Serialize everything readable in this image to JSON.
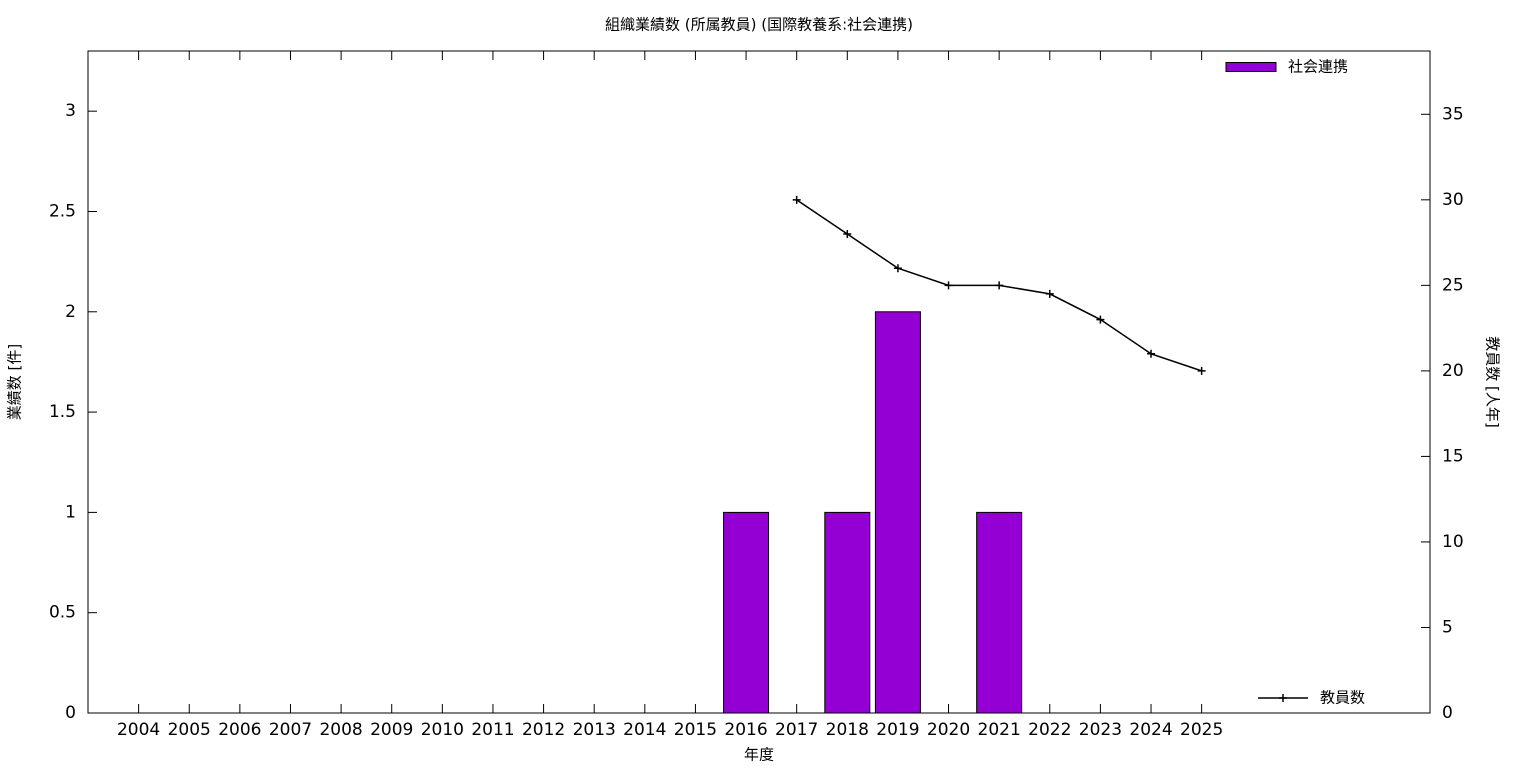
{
  "chart_data": {
    "type": "bar",
    "title": "組織業績数 (所属教員) (国際教養系:社会連携)",
    "xlabel": "年度",
    "ylabel": "業績数 [件]",
    "y2label": "教員数 [人年]",
    "categories": [
      "2004",
      "2005",
      "2006",
      "2007",
      "2008",
      "2009",
      "2010",
      "2011",
      "2012",
      "2013",
      "2014",
      "2015",
      "2016",
      "2017",
      "2018",
      "2019",
      "2020",
      "2021",
      "2022",
      "2023",
      "2024",
      "2025"
    ],
    "series": [
      {
        "name": "社会連携",
        "type": "bar",
        "color": "#9400d3",
        "legend": "top-right",
        "values": [
          0,
          0,
          0,
          0,
          0,
          0,
          0,
          0,
          0,
          0,
          0,
          0,
          1,
          0,
          1,
          2,
          0,
          1,
          0,
          0,
          0,
          0
        ]
      },
      {
        "name": "教員数",
        "type": "line",
        "axis": "y2",
        "color": "#000000",
        "legend": "bottom-right",
        "values": [
          null,
          null,
          null,
          null,
          null,
          null,
          null,
          null,
          null,
          null,
          null,
          null,
          null,
          30,
          28,
          26,
          25,
          25,
          24.5,
          23,
          21,
          20
        ]
      }
    ],
    "ylim": [
      0,
      3.3
    ],
    "yticks": [
      0,
      0.5,
      1,
      1.5,
      2,
      2.5,
      3
    ],
    "y2lim": [
      0,
      38.7
    ],
    "y2ticks": [
      0,
      5,
      10,
      15,
      20,
      25,
      30,
      35
    ],
    "grid": false
  }
}
